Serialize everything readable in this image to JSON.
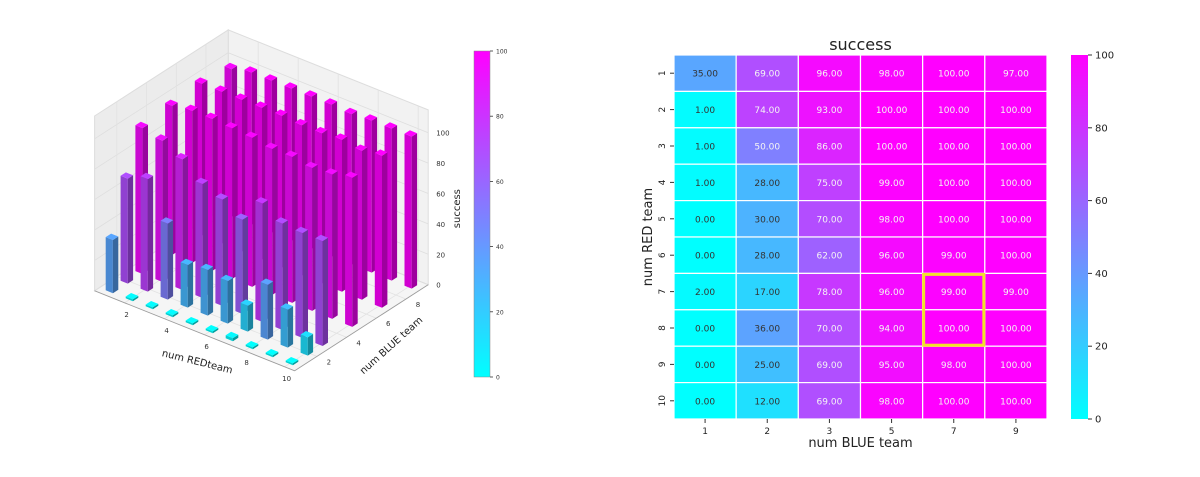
{
  "chart_data": [
    {
      "type": "bar3d",
      "xlabel": "num REDteam",
      "ylabel": "num BLUE team",
      "zlabel": "success",
      "x": [
        1,
        2,
        3,
        4,
        5,
        6,
        7,
        8,
        9,
        10
      ],
      "y": [
        1,
        2,
        3,
        5,
        7,
        9
      ],
      "x_ticks": [
        "2",
        "4",
        "6",
        "8",
        "10"
      ],
      "y_ticks": [
        "2",
        "4",
        "6",
        "8"
      ],
      "z_ticks": [
        "0",
        "20",
        "40",
        "60",
        "80",
        "100"
      ],
      "zlim": [
        0,
        100
      ],
      "values": [
        [
          35,
          69,
          96,
          98,
          100,
          97
        ],
        [
          1,
          74,
          93,
          100,
          100,
          100
        ],
        [
          1,
          50,
          86,
          100,
          100,
          100
        ],
        [
          1,
          28,
          75,
          99,
          100,
          100
        ],
        [
          0,
          30,
          70,
          98,
          100,
          100
        ],
        [
          0,
          28,
          62,
          96,
          99,
          100
        ],
        [
          2,
          17,
          78,
          96,
          99,
          99
        ],
        [
          0,
          36,
          70,
          94,
          100,
          100
        ],
        [
          0,
          25,
          69,
          95,
          98,
          100
        ],
        [
          0,
          12,
          69,
          98,
          100,
          100
        ]
      ],
      "colorbar": {
        "ticks": [
          "0",
          "20",
          "40",
          "60",
          "80",
          "100"
        ],
        "range": [
          0,
          100
        ]
      },
      "colormap": [
        "#00ffff",
        "#ff00ff"
      ],
      "grid": true
    },
    {
      "type": "heatmap",
      "title": "success",
      "xlabel": "num BLUE team",
      "ylabel": "num RED team",
      "x_categories": [
        "1",
        "2",
        "3",
        "5",
        "7",
        "9"
      ],
      "y_categories": [
        "1",
        "2",
        "3",
        "4",
        "5",
        "6",
        "7",
        "8",
        "9",
        "10"
      ],
      "values": [
        [
          35,
          69,
          96,
          98,
          100,
          97
        ],
        [
          1,
          74,
          93,
          100,
          100,
          100
        ],
        [
          1,
          50,
          86,
          100,
          100,
          100
        ],
        [
          1,
          28,
          75,
          99,
          100,
          100
        ],
        [
          0,
          30,
          70,
          98,
          100,
          100
        ],
        [
          0,
          28,
          62,
          96,
          99,
          100
        ],
        [
          2,
          17,
          78,
          96,
          99,
          99
        ],
        [
          0,
          36,
          70,
          94,
          100,
          100
        ],
        [
          0,
          25,
          69,
          95,
          98,
          100
        ],
        [
          0,
          12,
          69,
          98,
          100,
          100
        ]
      ],
      "value_format": "0.00",
      "highlight": {
        "rows": [
          "7",
          "8"
        ],
        "cols": [
          "7"
        ],
        "color": "#f2e22a"
      },
      "colorbar": {
        "ticks": [
          "0",
          "20",
          "40",
          "60",
          "80",
          "100"
        ],
        "range": [
          0,
          100
        ]
      },
      "colormap": [
        "#00ffff",
        "#ff00ff"
      ]
    }
  ]
}
